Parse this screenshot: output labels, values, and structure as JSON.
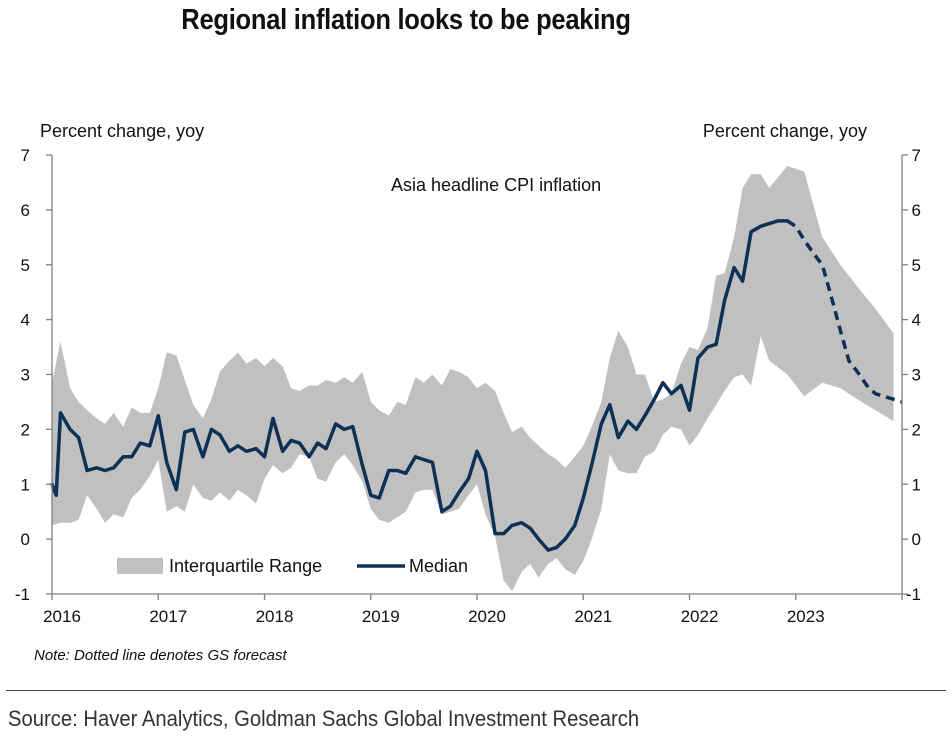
{
  "title": "Regional inflation looks to be peaking",
  "source": "Source: Haver Analytics, Goldman Sachs Global Investment Research",
  "chart_data": {
    "type": "area",
    "annotation": "Asia headline CPI inflation",
    "note": "Note: Dotted line denotes GS forecast",
    "ylabel_left": "Percent change, yoy",
    "ylabel_right": "Percent change, yoy",
    "ylim": [
      -1,
      7
    ],
    "yticks": [
      -1,
      0,
      1,
      2,
      3,
      4,
      5,
      6,
      7
    ],
    "xlim": [
      2016.0,
      2024.0
    ],
    "xticks": [
      2016,
      2017,
      2018,
      2019,
      2020,
      2021,
      2022,
      2023
    ],
    "xtick_labels": [
      "2016",
      "2017",
      "2018",
      "2019",
      "2020",
      "2021",
      "2022",
      "2023"
    ],
    "legend": {
      "placement": "bottom-left",
      "entries": [
        "Interquartile Range",
        "Median"
      ]
    },
    "colors": {
      "range": "#c0c0c0",
      "median": "#0d3057",
      "axis": "#808080"
    },
    "series": [
      {
        "name": "Interquartile Range",
        "kind": "band",
        "x": [
          2016.0,
          2016.08,
          2016.17,
          2016.25,
          2016.33,
          2016.42,
          2016.5,
          2016.58,
          2016.67,
          2016.75,
          2016.83,
          2016.92,
          2017.0,
          2017.08,
          2017.17,
          2017.25,
          2017.33,
          2017.42,
          2017.5,
          2017.58,
          2017.67,
          2017.75,
          2017.83,
          2017.92,
          2018.0,
          2018.08,
          2018.17,
          2018.25,
          2018.33,
          2018.42,
          2018.5,
          2018.58,
          2018.67,
          2018.75,
          2018.83,
          2018.92,
          2019.0,
          2019.08,
          2019.17,
          2019.25,
          2019.33,
          2019.42,
          2019.5,
          2019.58,
          2019.67,
          2019.75,
          2019.83,
          2019.92,
          2020.0,
          2020.08,
          2020.17,
          2020.25,
          2020.33,
          2020.42,
          2020.5,
          2020.58,
          2020.67,
          2020.75,
          2020.83,
          2020.92,
          2021.0,
          2021.08,
          2021.17,
          2021.25,
          2021.33,
          2021.42,
          2021.5,
          2021.58,
          2021.67,
          2021.75,
          2021.83,
          2021.92,
          2022.0,
          2022.08,
          2022.17,
          2022.25,
          2022.33,
          2022.42,
          2022.5,
          2022.58,
          2022.67,
          2022.75,
          2022.92,
          2023.08,
          2023.25,
          2023.42,
          2023.58,
          2023.75,
          2023.92
        ],
        "high": [
          2.85,
          3.6,
          2.75,
          2.5,
          2.35,
          2.2,
          2.1,
          2.3,
          2.05,
          2.4,
          2.3,
          2.3,
          2.75,
          3.4,
          3.35,
          2.9,
          2.45,
          2.2,
          2.55,
          3.05,
          3.25,
          3.4,
          3.2,
          3.3,
          3.15,
          3.3,
          3.15,
          2.75,
          2.7,
          2.8,
          2.8,
          2.9,
          2.85,
          2.95,
          2.85,
          3.05,
          2.5,
          2.35,
          2.25,
          2.5,
          2.45,
          2.95,
          2.85,
          3.0,
          2.8,
          3.1,
          3.05,
          2.95,
          2.75,
          2.85,
          2.7,
          2.3,
          1.95,
          2.05,
          1.85,
          1.7,
          1.55,
          1.45,
          1.3,
          1.5,
          1.7,
          2.05,
          2.5,
          3.3,
          3.8,
          3.5,
          3.0,
          3.0,
          2.5,
          2.55,
          2.65,
          3.2,
          3.5,
          3.45,
          3.85,
          4.8,
          4.85,
          5.5,
          6.4,
          6.65,
          6.65,
          6.4,
          6.8,
          6.7,
          5.5,
          5.0,
          4.6,
          4.2,
          3.75
        ],
        "low": [
          0.25,
          0.3,
          0.3,
          0.35,
          0.8,
          0.55,
          0.3,
          0.45,
          0.4,
          0.75,
          0.9,
          1.15,
          1.45,
          0.5,
          0.6,
          0.5,
          1.0,
          0.75,
          0.7,
          0.85,
          0.7,
          0.9,
          0.8,
          0.65,
          1.1,
          1.35,
          1.2,
          1.3,
          1.55,
          1.5,
          1.1,
          1.05,
          1.4,
          1.55,
          1.35,
          1.05,
          0.55,
          0.35,
          0.3,
          0.4,
          0.5,
          0.85,
          0.9,
          0.9,
          0.45,
          0.5,
          0.55,
          0.8,
          1.0,
          0.45,
          0.05,
          -0.75,
          -0.95,
          -0.6,
          -0.45,
          -0.7,
          -0.45,
          -0.35,
          -0.55,
          -0.65,
          -0.4,
          0.0,
          0.55,
          1.55,
          1.25,
          1.2,
          1.2,
          1.5,
          1.6,
          1.9,
          2.05,
          2.0,
          1.7,
          1.9,
          2.2,
          2.45,
          2.7,
          2.95,
          3.0,
          2.8,
          3.7,
          3.25,
          3.0,
          2.6,
          2.85,
          2.75,
          2.55,
          2.35,
          2.15
        ]
      },
      {
        "name": "Median",
        "kind": "line",
        "x": [
          2016.0,
          2016.04,
          2016.08,
          2016.17,
          2016.25,
          2016.33,
          2016.42,
          2016.5,
          2016.58,
          2016.67,
          2016.75,
          2016.83,
          2016.92,
          2017.0,
          2017.08,
          2017.17,
          2017.25,
          2017.33,
          2017.42,
          2017.5,
          2017.58,
          2017.67,
          2017.75,
          2017.83,
          2017.92,
          2018.0,
          2018.08,
          2018.17,
          2018.25,
          2018.33,
          2018.42,
          2018.5,
          2018.58,
          2018.67,
          2018.75,
          2018.83,
          2018.92,
          2019.0,
          2019.08,
          2019.17,
          2019.25,
          2019.33,
          2019.42,
          2019.5,
          2019.58,
          2019.67,
          2019.75,
          2019.83,
          2019.92,
          2020.0,
          2020.08,
          2020.17,
          2020.25,
          2020.33,
          2020.42,
          2020.5,
          2020.58,
          2020.67,
          2020.75,
          2020.83,
          2020.92,
          2021.0,
          2021.08,
          2021.17,
          2021.25,
          2021.33,
          2021.42,
          2021.5,
          2021.58,
          2021.67,
          2021.75,
          2021.83,
          2021.92,
          2022.0,
          2022.08,
          2022.17,
          2022.25,
          2022.33,
          2022.42,
          2022.5,
          2022.58,
          2022.67,
          2022.75,
          2022.83,
          2022.92
        ],
        "values": [
          1.0,
          0.8,
          2.3,
          2.0,
          1.85,
          1.25,
          1.3,
          1.25,
          1.3,
          1.5,
          1.5,
          1.75,
          1.7,
          2.25,
          1.4,
          0.9,
          1.95,
          2.0,
          1.5,
          2.0,
          1.9,
          1.6,
          1.7,
          1.6,
          1.65,
          1.5,
          2.2,
          1.6,
          1.8,
          1.75,
          1.5,
          1.75,
          1.65,
          2.1,
          2.0,
          2.05,
          1.35,
          0.8,
          0.75,
          1.25,
          1.25,
          1.2,
          1.5,
          1.45,
          1.4,
          0.5,
          0.6,
          0.85,
          1.1,
          1.6,
          1.25,
          0.1,
          0.1,
          0.25,
          0.3,
          0.2,
          0.0,
          -0.2,
          -0.15,
          0.0,
          0.25,
          0.75,
          1.35,
          2.1,
          2.45,
          1.85,
          2.15,
          2.0,
          2.25,
          2.55,
          2.85,
          2.65,
          2.8,
          2.35,
          3.3,
          3.5,
          3.55,
          4.35,
          4.95,
          4.7,
          5.6,
          5.7,
          5.75,
          5.8,
          5.8
        ]
      },
      {
        "name": "Median forecast",
        "kind": "line-dashed",
        "x": [
          2022.92,
          2023.0,
          2023.08,
          2023.17,
          2023.25,
          2023.33,
          2023.42,
          2023.5,
          2023.58,
          2023.67,
          2023.75,
          2023.83,
          2023.92,
          2024.0
        ],
        "values": [
          5.8,
          5.7,
          5.45,
          5.2,
          5.0,
          4.45,
          3.8,
          3.25,
          3.05,
          2.8,
          2.65,
          2.6,
          2.55,
          2.5
        ]
      }
    ]
  }
}
